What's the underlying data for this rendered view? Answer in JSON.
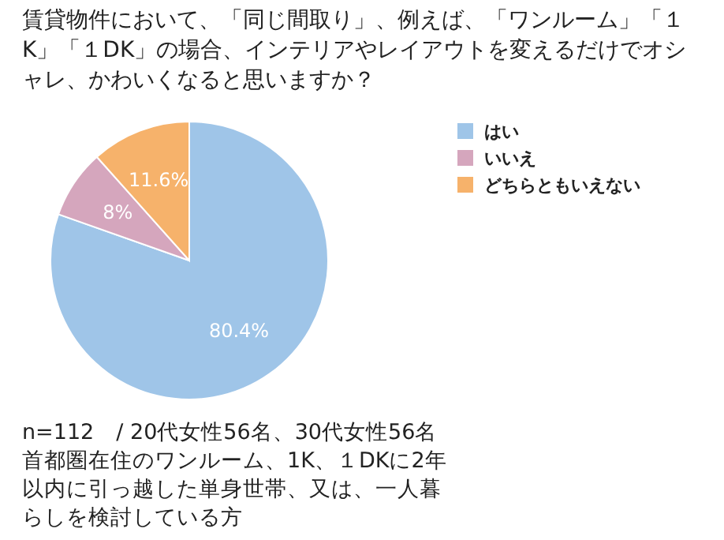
{
  "chart_data": {
    "type": "pie",
    "title": "賃貸物件において、「同じ間取り」、例えば、「ワンルーム」「１K」「１DK」の場合、インテリアやレイアウトを変えるだけでオシャレ、かわいくなると思いますか？",
    "categories": [
      "はい",
      "いいえ",
      "どちらともいえない"
    ],
    "values": [
      80.4,
      8,
      11.6
    ],
    "colors": [
      "#9fc5e8",
      "#d5a6bd",
      "#f6b26b"
    ],
    "value_labels": [
      "80.4%",
      "8%",
      "11.6%"
    ],
    "legend": "right",
    "annotations": [
      "n=112　/ 20代女性56名、30代女性56名",
      "首都圏在住のワンルーム、1K、１DKに2年以内に引っ越した単身世帯、又は、一人暮らしを検討している方"
    ]
  }
}
